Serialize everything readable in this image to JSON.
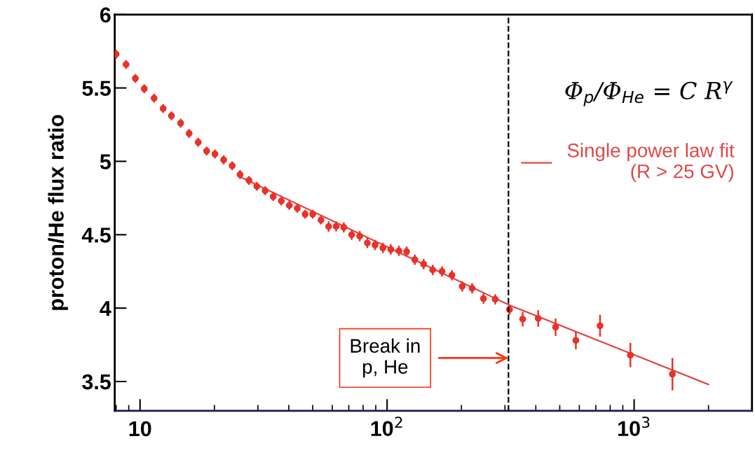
{
  "chart_data": {
    "type": "scatter",
    "ylabel": "proton/He flux ratio",
    "log": "x",
    "xlim": [
      7.9,
      3000
    ],
    "ylim": [
      3.3,
      6.0
    ],
    "xticks": [
      10,
      {
        "value": 100,
        "label": "10$^{2}$"
      },
      {
        "value": 1000,
        "label": "10$^{3}$"
      }
    ],
    "yticks": [
      3.5,
      4,
      4.5,
      5,
      5.5,
      6
    ],
    "legend": "top right",
    "marker": "circle",
    "series": [
      {
        "color": "#e8322a",
        "x": [
          8.0,
          8.78,
          9.57,
          10.4,
          11.4,
          12.4,
          13.4,
          14.6,
          15.8,
          17.2,
          18.6,
          20.1,
          21.8,
          23.6,
          25.4,
          27.6,
          29.7,
          32.1,
          34.6,
          37.3,
          40.2,
          43.3,
          46.6,
          50.0,
          54.0,
          58.0,
          62.2,
          66.8,
          71.9,
          77.5,
          83.2,
          89.4,
          96.2,
          103.5,
          111.7,
          120,
          129.5,
          140.6,
          153,
          166.9,
          183,
          201.5,
          221,
          245.6,
          274,
          313,
          354,
          409,
          481,
          581,
          728,
          966,
          1429
        ],
        "values": [
          5.73,
          5.66,
          5.565,
          5.495,
          5.43,
          5.36,
          5.31,
          5.26,
          5.19,
          5.13,
          5.07,
          5.05,
          5.01,
          4.97,
          4.91,
          4.87,
          4.83,
          4.8,
          4.76,
          4.73,
          4.7,
          4.68,
          4.64,
          4.64,
          4.6,
          4.556,
          4.557,
          4.55,
          4.5,
          4.49,
          4.444,
          4.43,
          4.41,
          4.4,
          4.39,
          4.385,
          4.33,
          4.3,
          4.26,
          4.25,
          4.224,
          4.148,
          4.135,
          4.065,
          4.06,
          3.99,
          3.925,
          3.93,
          3.87,
          3.78,
          3.88,
          3.68,
          3.55
        ],
        "errors": [
          0.03,
          0.03,
          0.03,
          0.03,
          0.03,
          0.03,
          0.03,
          0.03,
          0.03,
          0.03,
          0.03,
          0.03,
          0.03,
          0.03,
          0.03,
          0.03,
          0.03,
          0.03,
          0.03,
          0.03,
          0.03,
          0.03,
          0.03,
          0.03,
          0.03,
          0.035,
          0.035,
          0.035,
          0.035,
          0.035,
          0.035,
          0.035,
          0.035,
          0.035,
          0.035,
          0.035,
          0.035,
          0.035,
          0.035,
          0.035,
          0.035,
          0.035,
          0.035,
          0.035,
          0.035,
          0.035,
          0.05,
          0.056,
          0.06,
          0.06,
          0.074,
          0.083,
          0.11
        ]
      },
      {
        "type": "line",
        "marker": "none",
        "name": "Single power law fit\n(R > 25 GV)",
        "color": "#e04848",
        "x": [
          25,
          313,
          2000
        ],
        "values": [
          4.9,
          4.02,
          3.48
        ]
      }
    ],
    "ref_lines": [
      {
        "axis": "x",
        "value": 310,
        "color": "#000000",
        "line_style": "dashed"
      }
    ],
    "annotations": [
      "Φ$_{p}$/Φ$_{He}$ = C R$^{γ}$",
      {
        "text": "Break in\np, He",
        "x": 310,
        "y": 3.66
      }
    ]
  }
}
